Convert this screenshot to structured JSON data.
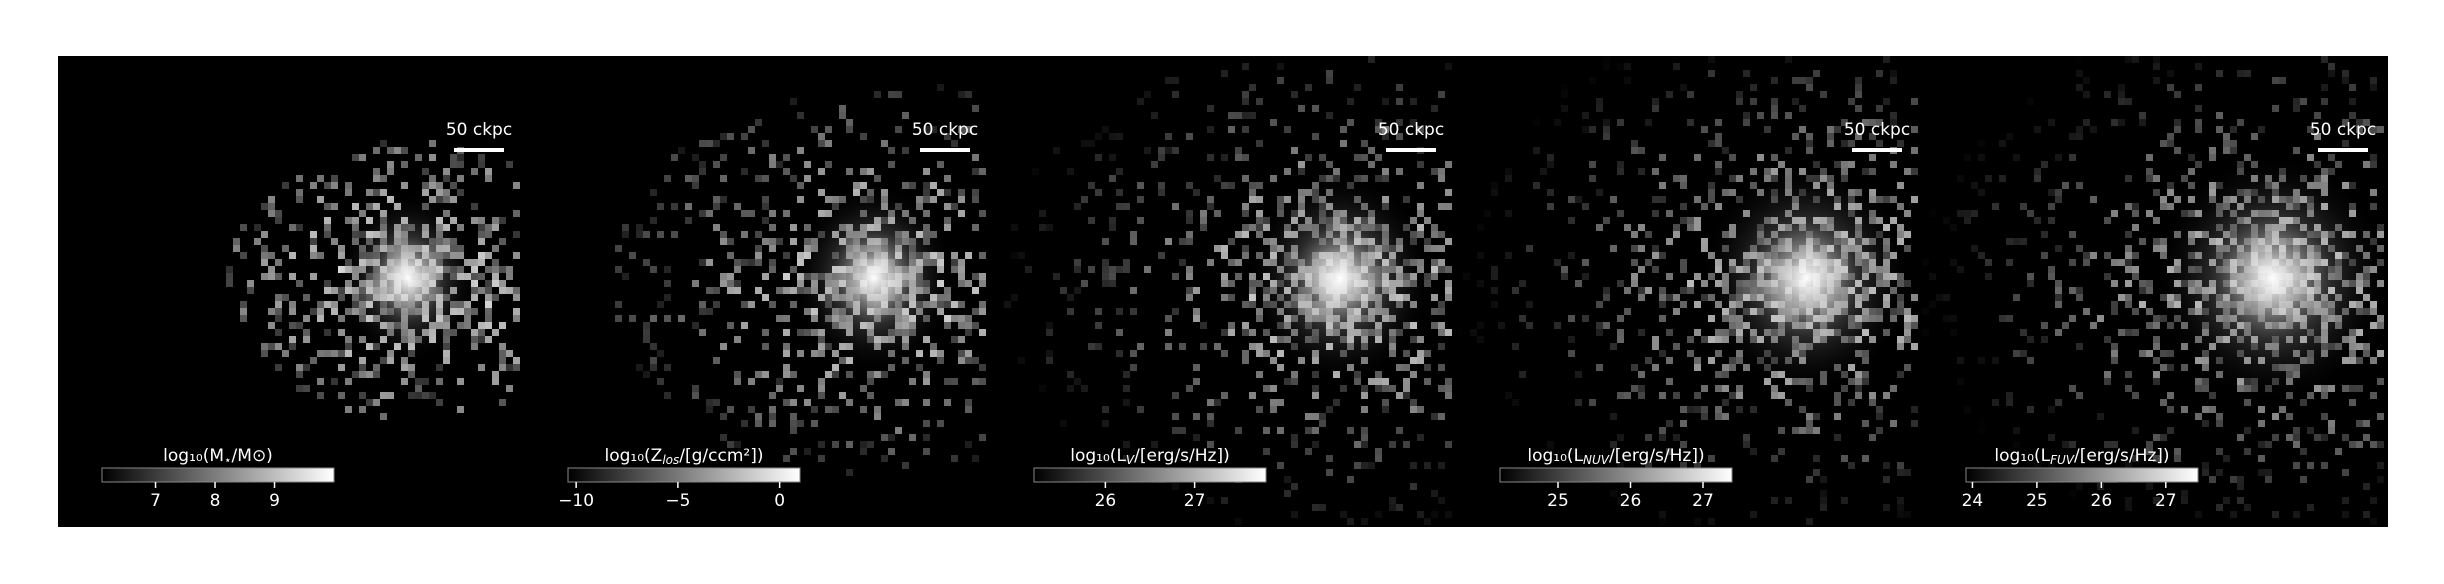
{
  "chart_data": [
    {
      "type": "image",
      "scale_bar": "50 ckpc",
      "colorbar_label": {
        "text": "log₁₀(M",
        "sub": "⋆",
        "tail": "/M⊙)"
      },
      "clim": [
        6.1,
        10.0
      ],
      "cticks": [
        7,
        8,
        9
      ]
    },
    {
      "type": "image",
      "scale_bar": "50 ckpc",
      "colorbar_label": {
        "text": "log₁₀(Z",
        "sub": "los",
        "tail": "/[g/ccm²])"
      },
      "clim": [
        -10.4,
        1.0
      ],
      "cticks": [
        {
          "value": -10,
          "label": "−10"
        },
        {
          "value": -5,
          "label": "−5"
        },
        0
      ]
    },
    {
      "type": "image",
      "scale_bar": "50 ckpc",
      "colorbar_label": {
        "text": "log₁₀(L",
        "sub": "V",
        "tail": "/[erg/s/Hz])"
      },
      "clim": [
        25.2,
        27.8
      ],
      "cticks": [
        26,
        27
      ]
    },
    {
      "type": "image",
      "scale_bar": "50 ckpc",
      "colorbar_label": {
        "text": "log₁₀(L",
        "sub": "NUV",
        "tail": "/[erg/s/Hz])"
      },
      "clim": [
        24.2,
        27.4
      ],
      "cticks": [
        25,
        26,
        27
      ]
    },
    {
      "type": "image",
      "scale_bar": "50 ckpc",
      "colorbar_label": {
        "text": "log₁₀(L",
        "sub": "FUV",
        "tail": "/[erg/s/Hz])"
      },
      "clim": [
        23.9,
        27.5
      ],
      "cticks": [
        24,
        25,
        26,
        27
      ]
    }
  ]
}
